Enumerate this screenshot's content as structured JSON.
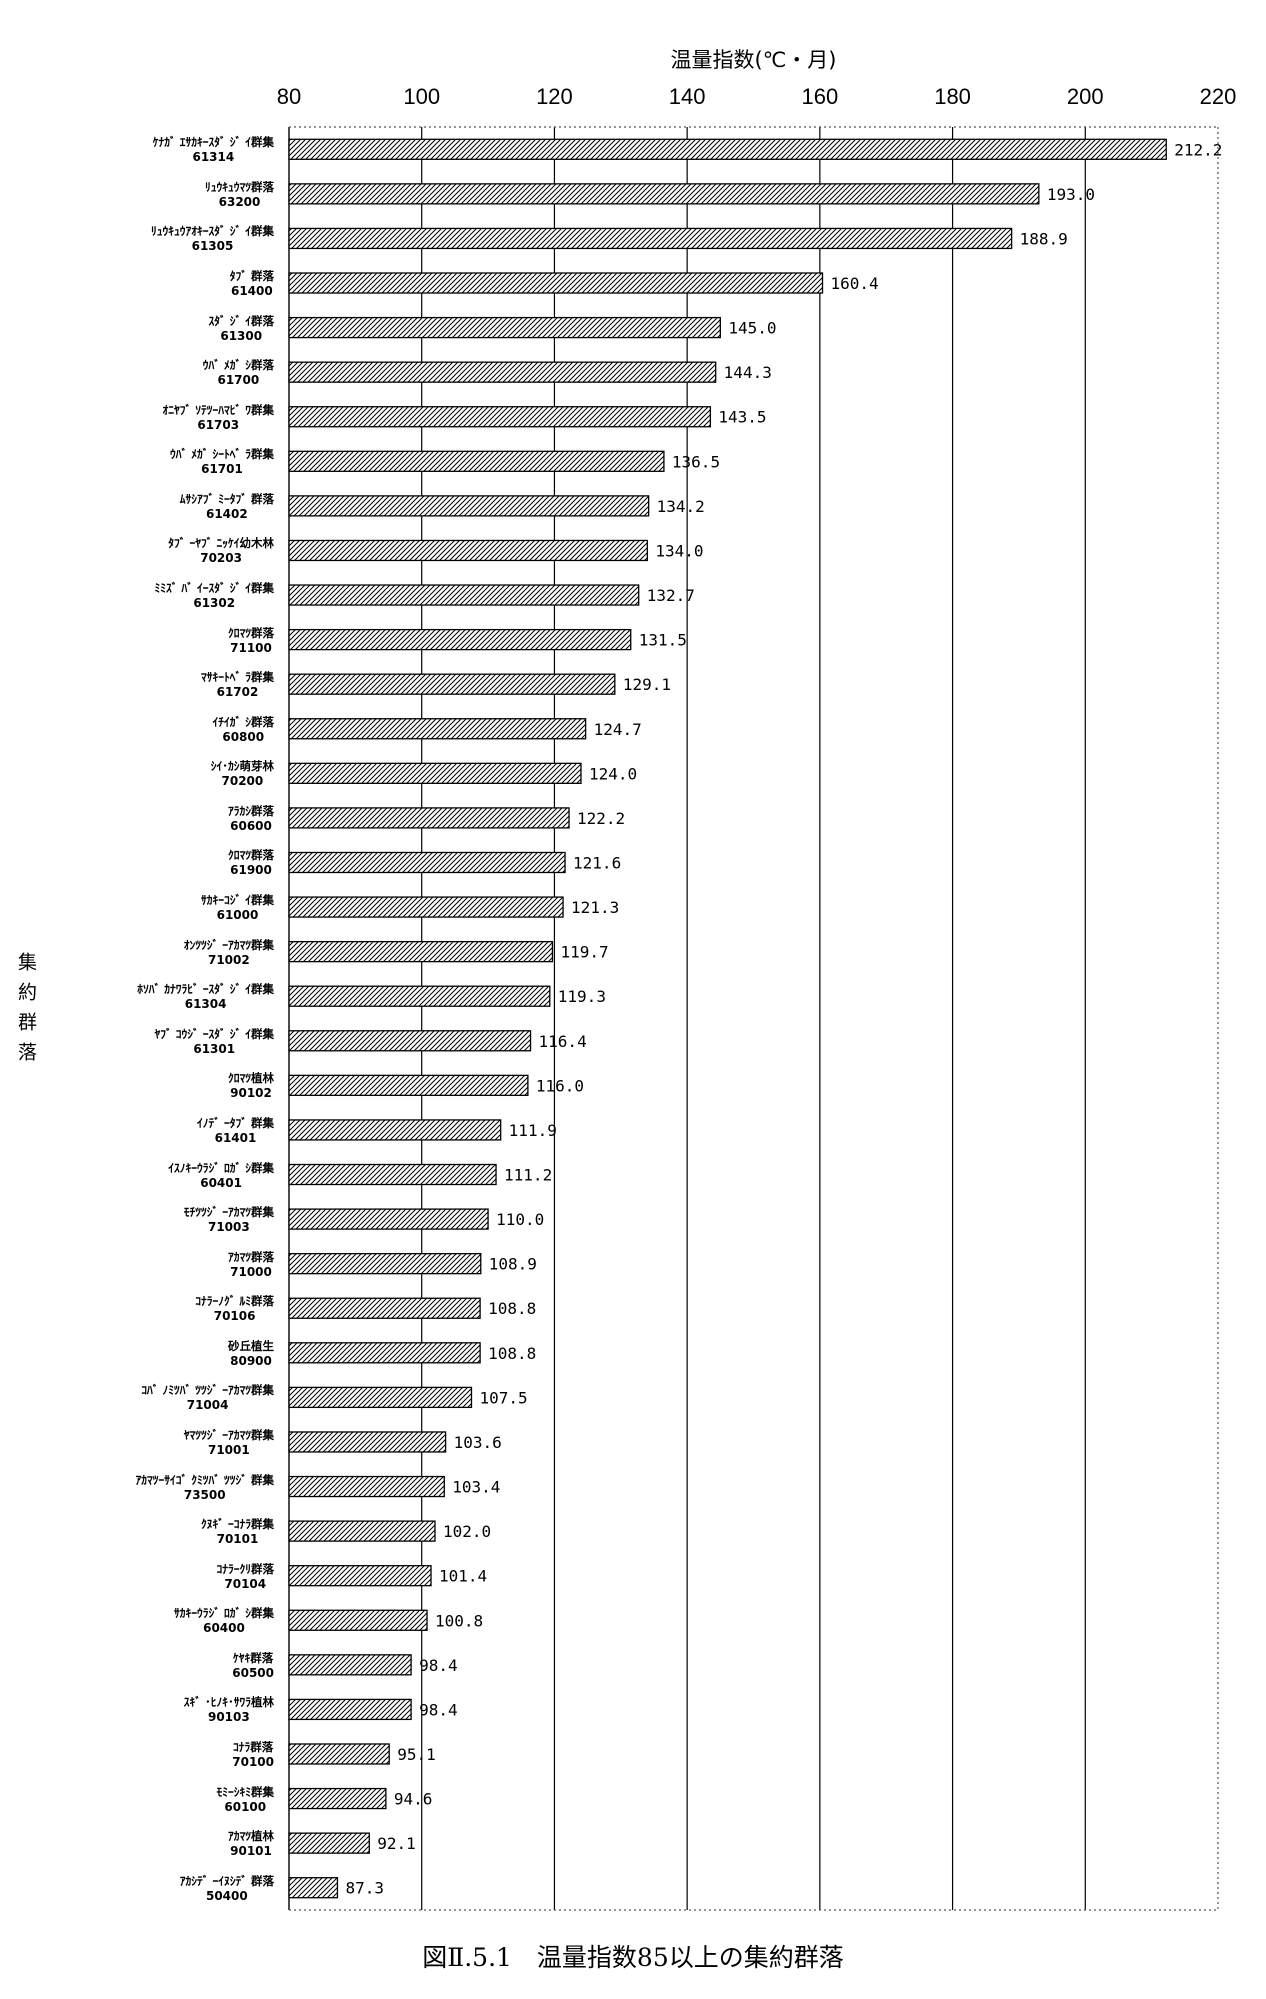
{
  "chart_data": {
    "type": "bar",
    "orientation": "horizontal",
    "title": "図Ⅱ.5.1　温量指数85以上の集約群落",
    "xlabel": "温量指数(℃・月)",
    "ylabel": "集約群落",
    "xlim": [
      80,
      220
    ],
    "x_ticks": [
      80,
      100,
      120,
      140,
      160,
      180,
      200,
      220
    ],
    "x_axis_position": "top",
    "grid": "vertical",
    "legend": "none",
    "bar_fill": "diagonal-hatch",
    "data_labels": true,
    "categories": [
      "ｹﾅｶﾞ ｴｻｶｷｰｽﾀﾞ ｼﾞ ｲ群集",
      "ﾘｭｳｷｭｳﾏﾂ群落",
      "ﾘｭｳｷｭｳｱｵｷｰｽﾀﾞ ｼﾞ ｲ群集",
      "ﾀﾌﾞ 群落",
      "ｽﾀﾞ ｼﾞ ｲ群落",
      "ｳﾊﾞ ﾒｶﾞ ｼ群落",
      "ｵﾆﾔﾌﾞ ｿﾃﾂｰﾊﾏﾋﾞ ﾜ群集",
      "ｳﾊﾞ ﾒｶﾞ ｼｰﾄﾍﾞ ﾗ群集",
      "ﾑｻｼｱﾌﾞ ﾐｰﾀﾌﾞ 群落",
      "ﾀﾌﾞ ｰﾔﾌﾞ ﾆｯｹｲ幼木林",
      "ﾐﾐｽﾞ ﾊﾞ ｲｰｽﾀﾞ ｼﾞ ｲ群集",
      "ｸﾛﾏﾂ群落",
      "ﾏｻｷｰﾄﾍﾞ ﾗ群集",
      "ｲﾁｲｶﾞ ｼ群落",
      "ｼｲ･ｶｼ萌芽林",
      "ｱﾗｶｼ群落",
      "ｸﾛﾏﾂ群落",
      "ｻｶｷｰｺｼﾞ ｲ群集",
      "ｵﾝﾂﾂｼﾞ ｰｱｶﾏﾂ群集",
      "ﾎｿﾊﾞ ｶﾅﾜﾗﾋﾞ ｰｽﾀﾞ ｼﾞ ｲ群集",
      "ﾔﾌﾞ ｺｳｼﾞ ｰｽﾀﾞ ｼﾞ ｲ群集",
      "ｸﾛﾏﾂ植林",
      "ｲﾉﾃﾞ ｰﾀﾌﾞ 群集",
      "ｲｽﾉｷｰｳﾗｼﾞ ﾛｶﾞ ｼ群集",
      "ﾓﾁﾂﾂｼﾞ ｰｱｶﾏﾂ群集",
      "ｱｶﾏﾂ群落",
      "ｺﾅﾗｰﾉｸﾞ ﾙﾐ群落",
      "砂丘植生",
      "ｺﾊﾞ ﾉﾐﾂﾊﾞ ﾂﾂｼﾞ ｰｱｶﾏﾂ群集",
      "ﾔﾏﾂﾂｼﾞ ｰｱｶﾏﾂ群集",
      "ｱｶﾏﾂｰｻｲｺﾞ ｸﾐﾂﾊﾞ ﾂﾂｼﾞ 群集",
      "ｸﾇｷﾞ ｰｺﾅﾗ群集",
      "ｺﾅﾗｰｸﾘ群落",
      "ｻｶｷｰｳﾗｼﾞ ﾛｶﾞ ｼ群集",
      "ｹﾔｷ群落",
      "ｽｷﾞ ･ﾋﾉｷ･ｻﾜﾗ植林",
      "ｺﾅﾗ群落",
      "ﾓﾐｰｼｷﾐ群集",
      "ｱｶﾏﾂ植林",
      "ｱｶｼﾃﾞ ｰｲﾇｼﾃﾞ 群落"
    ],
    "category_codes": [
      "61314",
      "63200",
      "61305",
      "61400",
      "61300",
      "61700",
      "61703",
      "61701",
      "61402",
      "70203",
      "61302",
      "71100",
      "61702",
      "60800",
      "70200",
      "60600",
      "61900",
      "61000",
      "71002",
      "61304",
      "61301",
      "90102",
      "61401",
      "60401",
      "71003",
      "71000",
      "70106",
      "80900",
      "71004",
      "71001",
      "73500",
      "70101",
      "70104",
      "60400",
      "60500",
      "90103",
      "70100",
      "60100",
      "90101",
      "50400"
    ],
    "values": [
      212.2,
      193.0,
      188.9,
      160.4,
      145.0,
      144.3,
      143.5,
      136.5,
      134.2,
      134.0,
      132.7,
      131.5,
      129.1,
      124.7,
      124.0,
      122.2,
      121.6,
      121.3,
      119.7,
      119.3,
      116.4,
      116.0,
      111.9,
      111.2,
      110.0,
      108.9,
      108.8,
      108.8,
      107.5,
      103.6,
      103.4,
      102.0,
      101.4,
      100.8,
      98.4,
      98.4,
      95.1,
      94.6,
      92.1,
      87.3
    ]
  },
  "colors": {
    "background": "#ffffff",
    "bar_outline": "#000000",
    "hatch": "#000000",
    "gridline": "#000000",
    "frame_dotted": "#555555"
  }
}
